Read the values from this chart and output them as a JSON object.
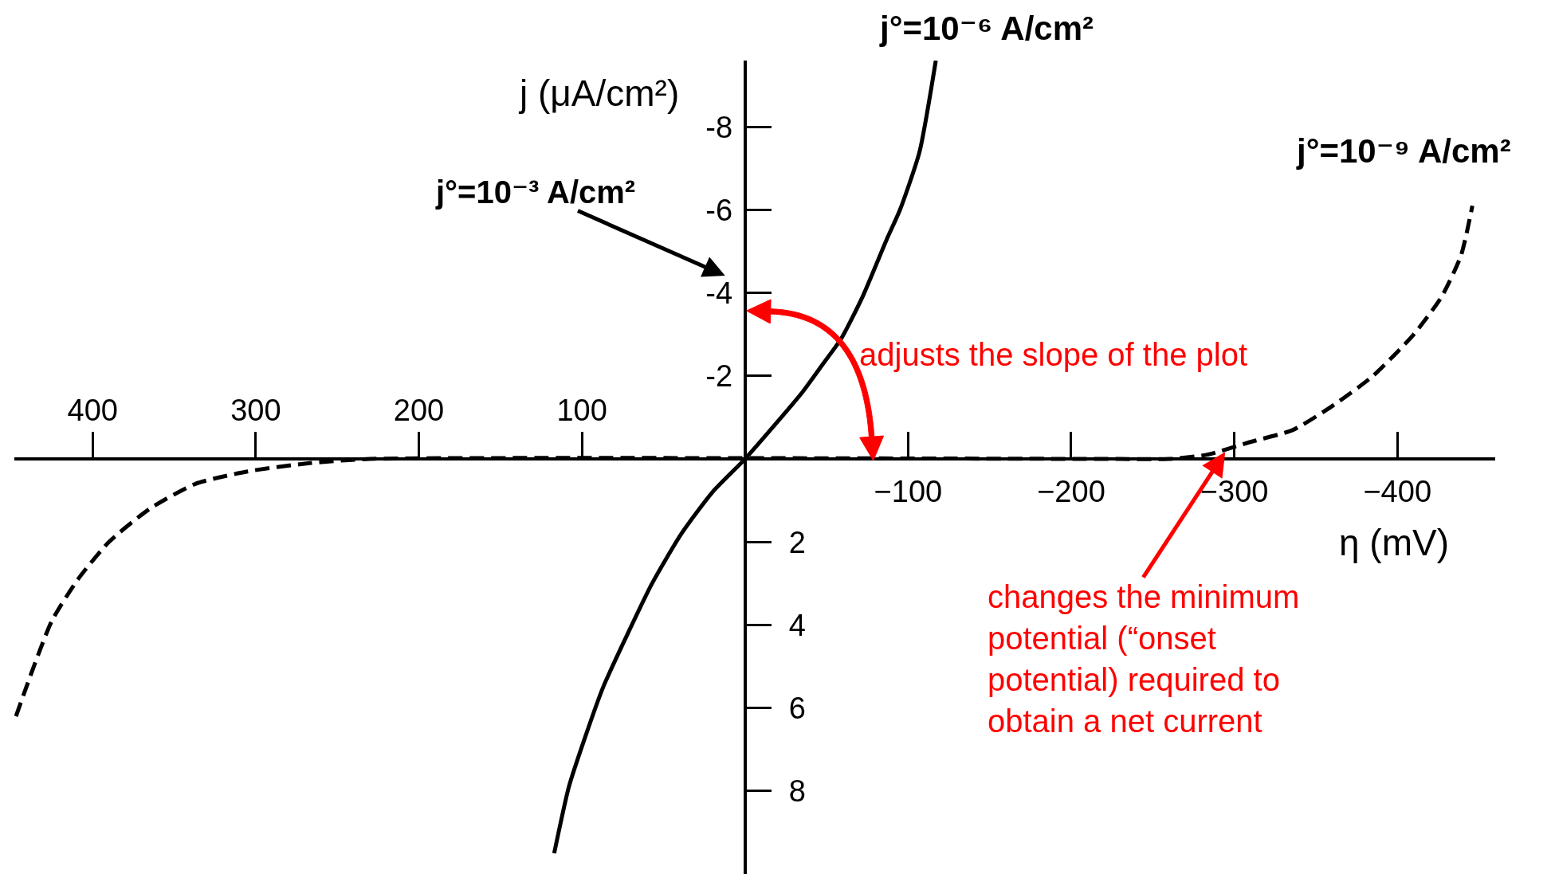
{
  "chart_data": {
    "type": "line",
    "xlabel": "η (mV)",
    "ylabel": "j (μA/cm²)",
    "xlim": [
      448,
      -460
    ],
    "xticks": [
      {
        "value": -100,
        "label": "−100"
      },
      {
        "value": -200,
        "label": "−200"
      },
      {
        "value": -300,
        "label": "−300"
      },
      {
        "value": -400,
        "label": "−400"
      }
    ],
    "x2lim": [
      448,
      -460
    ],
    "x2ticks": [
      400,
      300,
      200,
      100
    ],
    "ylim": [
      10,
      -9.6
    ],
    "yticks": [
      -8,
      -6,
      -4,
      -2
    ],
    "y2lim": [
      10,
      -9.6
    ],
    "y2ticks": [
      2,
      4,
      6,
      8
    ],
    "grid": false,
    "legend": false,
    "series": [
      {
        "name": "j°=10⁻⁶ A/cm²",
        "color": "#000000",
        "line_style": "solid",
        "x": [
          -117,
          -107,
          -95,
          -87,
          -72,
          -59,
          -48,
          -35,
          -20,
          0,
          20,
          39,
          57,
          73,
          87,
          98,
          108,
          117
        ],
        "values": [
          -9.6,
          -7.4,
          -6.0,
          -5.3,
          -3.9,
          -2.9,
          -2.3,
          -1.6,
          -0.9,
          0,
          0.8,
          1.8,
          3.0,
          4.3,
          5.5,
          6.7,
          7.9,
          9.5
        ]
      },
      {
        "name": "j°=10⁻⁹ A/cm²",
        "color": "#000000",
        "line_style": "dashed",
        "x": [
          447,
          437,
          425,
          409,
          390,
          365,
          337,
          305,
          267,
          230,
          -230,
          -260,
          -283,
          -309,
          -336,
          -361,
          -385,
          -410,
          -427,
          -439,
          -446
        ],
        "values": [
          6.2,
          5.1,
          3.9,
          2.9,
          2.0,
          1.2,
          0.6,
          0.3,
          0.1,
          0,
          0,
          0,
          -0.1,
          -0.4,
          -0.7,
          -1.3,
          -2.0,
          -3.0,
          -3.9,
          -4.9,
          -6.1
        ]
      }
    ],
    "annotations": [
      "j°=10⁻³ A/cm²",
      "adjusts the slope of the plot",
      {
        "text": "changes the minimum potential (“onset potential) required to obtain a net current",
        "x": -295,
        "y": -0.2
      }
    ]
  }
}
